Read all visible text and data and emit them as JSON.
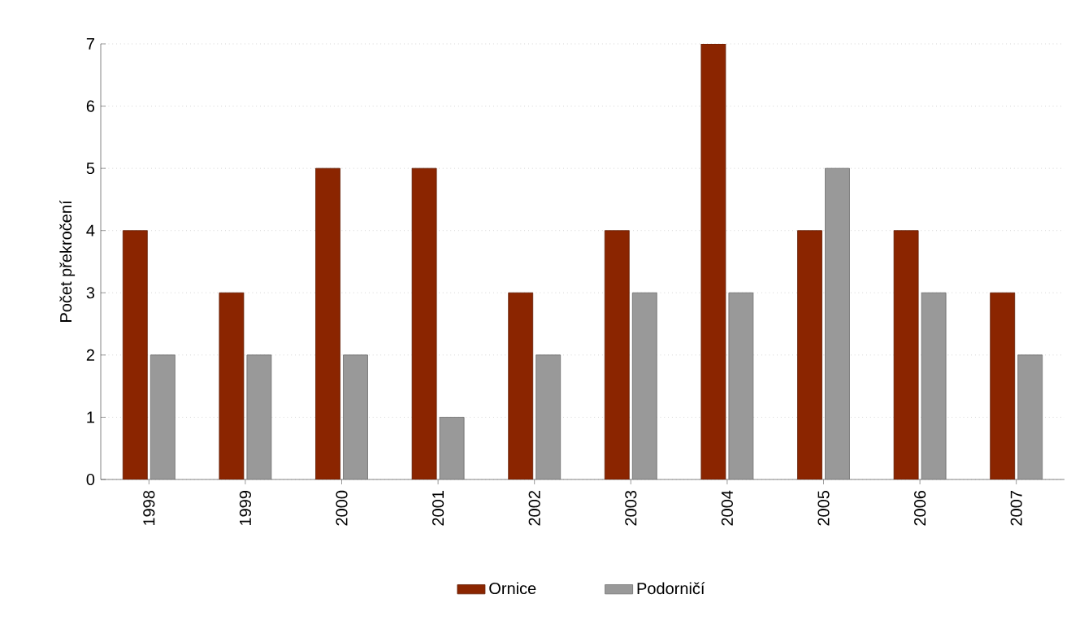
{
  "chart_data": {
    "type": "bar",
    "ylabel": "Počet překročení",
    "categories": [
      "1998",
      "1999",
      "2000",
      "2001",
      "2002",
      "2003",
      "2004",
      "2005",
      "2006",
      "2007"
    ],
    "series": [
      {
        "name": "Ornice",
        "color": "#8b2500",
        "values": [
          4,
          3,
          5,
          5,
          3,
          4,
          7,
          4,
          4,
          3
        ]
      },
      {
        "name": "Podorničí",
        "color": "#999999",
        "values": [
          2,
          2,
          2,
          1,
          2,
          3,
          3,
          5,
          3,
          2
        ]
      }
    ],
    "ylim": [
      0,
      7
    ],
    "yticks": [
      0,
      1,
      2,
      3,
      4,
      5,
      6,
      7
    ],
    "grid": "y",
    "legend": "bottom"
  }
}
